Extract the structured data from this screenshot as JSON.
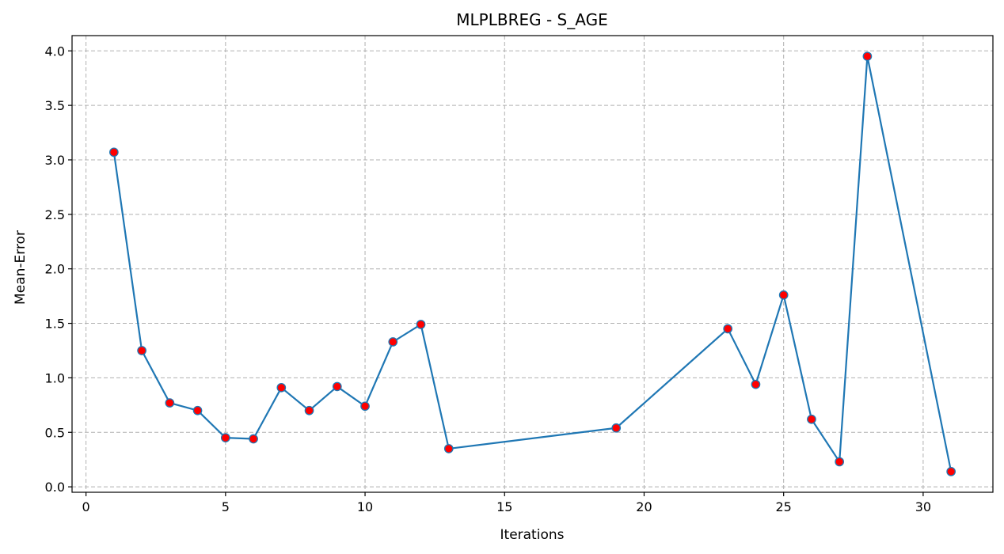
{
  "chart_data": {
    "type": "line",
    "title": "MLPLBREG - S_AGE",
    "xlabel": "Iterations",
    "ylabel": "Mean-Error",
    "xlim": [
      -0.5,
      32.5
    ],
    "ylim": [
      -0.05,
      4.14
    ],
    "xticks": [
      0,
      5,
      10,
      15,
      20,
      25,
      30
    ],
    "yticks": [
      0.0,
      0.5,
      1.0,
      1.5,
      2.0,
      2.5,
      3.0,
      3.5,
      4.0
    ],
    "grid": true,
    "series": [
      {
        "line_color": "#1f77b4",
        "marker_face": "#ff0000",
        "marker_edge": "#1f77b4",
        "x": [
          1,
          2,
          3,
          4,
          5,
          6,
          7,
          8,
          9,
          10,
          11,
          12,
          13,
          19,
          23,
          24,
          25,
          26,
          27,
          28,
          31
        ],
        "y": [
          3.07,
          1.25,
          0.77,
          0.7,
          0.45,
          0.44,
          0.91,
          0.7,
          0.92,
          0.74,
          1.33,
          1.49,
          0.35,
          0.54,
          1.45,
          0.94,
          1.76,
          0.62,
          0.23,
          3.95,
          0.14
        ]
      }
    ]
  }
}
